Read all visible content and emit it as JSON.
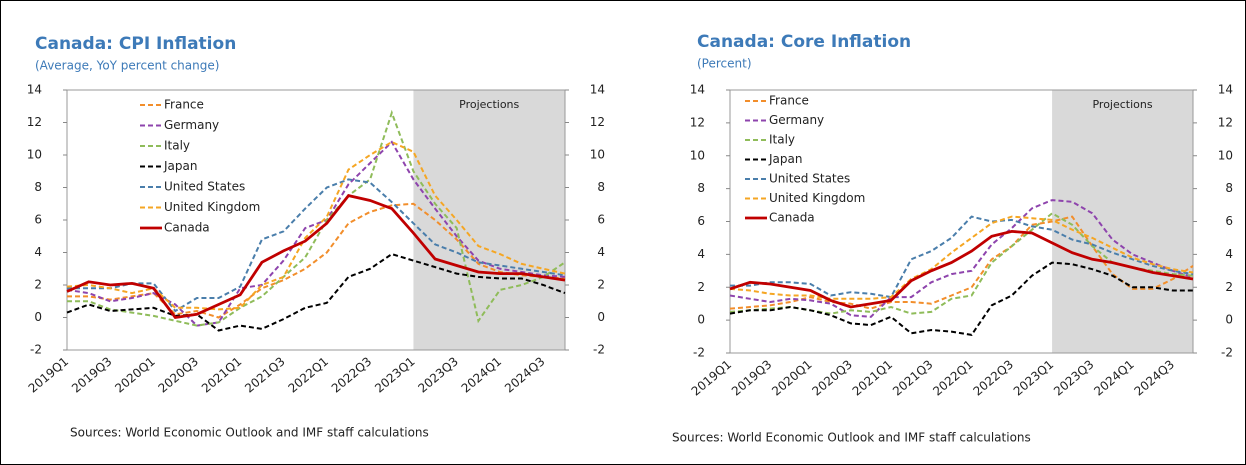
{
  "chart_data": [
    {
      "type": "line",
      "title": "Canada: CPI Inflation",
      "subtitle": "(Average, YoY percent change)",
      "note": "Sources: World Economic Outlook and IMF staff calculations",
      "categories": [
        "2019Q1",
        null,
        "2019Q3",
        null,
        "2020Q1",
        null,
        "2020Q3",
        null,
        "2021Q1",
        null,
        "2021Q3",
        null,
        "2022Q1",
        null,
        "2022Q3",
        null,
        "2023Q1",
        null,
        "2023Q3",
        null,
        "2024Q1",
        null,
        "2024Q3",
        null
      ],
      "projections": {
        "label": "Projections",
        "start": "2023Q1"
      },
      "ylim": [
        -2,
        14
      ],
      "yticks": [
        -2,
        0,
        2,
        4,
        6,
        8,
        10,
        12,
        14
      ],
      "y2lim": [
        -2,
        14
      ],
      "y2ticks": [
        -2,
        0,
        2,
        4,
        6,
        8,
        10,
        12,
        14
      ],
      "series": [
        {
          "name": "France",
          "color": "#f28e2b",
          "values": [
            1.3,
            1.3,
            1.1,
            1.3,
            1.5,
            0.2,
            0.4,
            0.0,
            0.8,
            1.8,
            2.3,
            3.0,
            4.0,
            5.8,
            6.5,
            6.9,
            7.0,
            6.0,
            4.8,
            3.3,
            2.8,
            2.6,
            2.5,
            2.4
          ]
        },
        {
          "name": "Germany",
          "color": "#8e44ad",
          "values": [
            1.7,
            1.5,
            1.0,
            1.2,
            1.5,
            0.8,
            -0.5,
            -0.3,
            1.8,
            2.0,
            3.5,
            5.5,
            6.0,
            8.2,
            9.5,
            10.8,
            8.5,
            6.7,
            5.0,
            3.5,
            3.0,
            2.8,
            2.6,
            2.5
          ]
        },
        {
          "name": "Italy",
          "color": "#8fbc5a",
          "values": [
            1.0,
            1.0,
            0.5,
            0.3,
            0.1,
            -0.2,
            -0.5,
            -0.3,
            0.6,
            1.3,
            2.5,
            3.7,
            6.0,
            7.5,
            8.5,
            12.6,
            9.0,
            7.0,
            5.5,
            -0.2,
            1.7,
            2.0,
            2.5,
            3.4
          ]
        },
        {
          "name": "Japan",
          "color": "#000000",
          "values": [
            0.3,
            0.8,
            0.4,
            0.5,
            0.6,
            0.1,
            0.2,
            -0.8,
            -0.5,
            -0.7,
            -0.1,
            0.6,
            0.9,
            2.5,
            3.0,
            3.9,
            3.5,
            3.1,
            2.7,
            2.5,
            2.4,
            2.4,
            2.0,
            1.5
          ]
        },
        {
          "name": "United States",
          "color": "#4a7eab",
          "values": [
            1.8,
            1.8,
            1.8,
            2.1,
            2.1,
            0.4,
            1.2,
            1.2,
            1.9,
            4.8,
            5.3,
            6.7,
            8.0,
            8.5,
            8.3,
            7.1,
            5.8,
            4.5,
            4.0,
            3.4,
            3.2,
            3.0,
            2.8,
            2.6
          ]
        },
        {
          "name": "United Kingdom",
          "color": "#f5a623",
          "values": [
            1.9,
            2.0,
            1.8,
            1.5,
            1.8,
            0.6,
            0.6,
            0.5,
            0.6,
            2.0,
            2.5,
            4.9,
            6.2,
            9.1,
            10.0,
            10.8,
            10.2,
            7.5,
            6.0,
            4.4,
            3.9,
            3.3,
            3.0,
            2.7
          ]
        },
        {
          "name": "Canada",
          "color": "#c00000",
          "values": [
            1.6,
            2.2,
            2.0,
            2.1,
            1.8,
            0.0,
            0.2,
            0.8,
            1.4,
            3.4,
            4.1,
            4.7,
            5.8,
            7.5,
            7.2,
            6.7,
            5.2,
            3.6,
            3.2,
            2.8,
            2.7,
            2.7,
            2.5,
            2.3
          ]
        }
      ]
    },
    {
      "type": "line",
      "title": "Canada: Core Inflation",
      "subtitle": "(Percent)",
      "note": "Sources: World Economic Outlook and IMF staff calculations",
      "categories": [
        "2019Q1",
        null,
        "2019Q3",
        null,
        "2020Q1",
        null,
        "2020Q3",
        null,
        "2021Q1",
        null,
        "2021Q3",
        null,
        "2022Q1",
        null,
        "2022Q3",
        null,
        "2023Q1",
        null,
        "2023Q3",
        null,
        "2024Q1",
        null,
        "2024Q3",
        null
      ],
      "projections": {
        "label": "Projections",
        "start": "2023Q1"
      },
      "ylim": [
        -2,
        14
      ],
      "yticks": [
        -2,
        0,
        2,
        4,
        6,
        8,
        10,
        12,
        14
      ],
      "y2lim": [
        -2,
        14
      ],
      "y2ticks": [
        -2,
        0,
        2,
        4,
        6,
        8,
        10,
        12,
        14
      ],
      "series": [
        {
          "name": "France",
          "color": "#f28e2b",
          "values": [
            0.7,
            0.8,
            0.9,
            1.1,
            1.4,
            1.1,
            1.0,
            0.7,
            1.1,
            1.1,
            1.0,
            1.5,
            2.0,
            3.7,
            4.5,
            5.8,
            6.0,
            6.3,
            4.5,
            2.8,
            1.9,
            1.9,
            2.5,
            3.3
          ]
        },
        {
          "name": "Germany",
          "color": "#8e44ad",
          "values": [
            1.5,
            1.3,
            1.1,
            1.3,
            1.2,
            1.0,
            0.3,
            0.2,
            1.4,
            1.4,
            2.3,
            2.8,
            3.0,
            4.6,
            5.6,
            6.8,
            7.3,
            7.2,
            6.5,
            4.9,
            4.0,
            3.5,
            3.0,
            2.6
          ]
        },
        {
          "name": "Italy",
          "color": "#8fbc5a",
          "values": [
            0.5,
            0.6,
            0.7,
            0.8,
            0.6,
            0.4,
            0.6,
            0.5,
            0.8,
            0.4,
            0.5,
            1.3,
            1.5,
            3.5,
            4.5,
            5.5,
            6.5,
            5.8,
            4.5,
            3.5,
            3.2,
            3.0,
            2.8,
            2.7
          ]
        },
        {
          "name": "Japan",
          "color": "#000000",
          "values": [
            0.4,
            0.6,
            0.6,
            0.8,
            0.6,
            0.3,
            -0.2,
            -0.3,
            0.2,
            -0.8,
            -0.6,
            -0.7,
            -0.9,
            0.9,
            1.5,
            2.7,
            3.5,
            3.4,
            3.1,
            2.7,
            2.0,
            2.0,
            1.8,
            1.8
          ]
        },
        {
          "name": "United States",
          "color": "#4a7eab",
          "values": [
            2.1,
            2.1,
            2.3,
            2.3,
            2.2,
            1.5,
            1.7,
            1.6,
            1.4,
            3.7,
            4.2,
            5.0,
            6.3,
            6.0,
            6.1,
            5.7,
            5.5,
            4.9,
            4.6,
            4.1,
            3.7,
            3.3,
            3.0,
            2.8
          ]
        },
        {
          "name": "United Kingdom",
          "color": "#f5a623",
          "values": [
            1.9,
            1.8,
            1.6,
            1.5,
            1.5,
            1.3,
            1.3,
            1.3,
            1.4,
            2.5,
            3.1,
            4.1,
            5.0,
            5.9,
            6.3,
            6.2,
            6.1,
            5.5,
            5.0,
            4.4,
            3.8,
            3.4,
            3.1,
            2.9
          ]
        },
        {
          "name": "Canada",
          "color": "#c00000",
          "values": [
            1.9,
            2.3,
            2.2,
            2.0,
            1.8,
            1.2,
            0.8,
            1.0,
            1.2,
            2.4,
            3.0,
            3.5,
            4.2,
            5.1,
            5.4,
            5.3,
            4.7,
            4.1,
            3.7,
            3.5,
            3.2,
            2.9,
            2.7,
            2.5
          ]
        }
      ]
    }
  ]
}
